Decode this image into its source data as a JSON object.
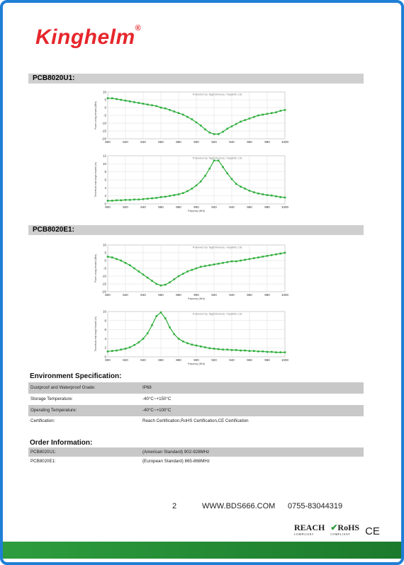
{
  "brand": {
    "name": "Kinghelm",
    "mark": "®"
  },
  "sections": [
    {
      "title": "PCB8020U1:"
    },
    {
      "title": "PCB8020E1:"
    }
  ],
  "chart_data": [
    {
      "type": "line",
      "watermark": "Powered by Tagformance, Voyantic Ltd.",
      "ylabel": "Power on tag forward (dBm)",
      "xlabel": "",
      "xlim": [
        800,
        1000
      ],
      "ylim": [
        -20,
        10
      ],
      "xticks": [
        800,
        820,
        840,
        860,
        880,
        900,
        920,
        940,
        960,
        980,
        1000
      ],
      "yticks": [
        10,
        5,
        0,
        -5,
        -10,
        -15,
        -20
      ],
      "x": [
        800,
        805,
        810,
        815,
        820,
        825,
        830,
        835,
        840,
        845,
        850,
        855,
        860,
        865,
        870,
        875,
        880,
        885,
        890,
        895,
        900,
        905,
        910,
        915,
        920,
        925,
        930,
        935,
        940,
        945,
        950,
        955,
        960,
        965,
        970,
        975,
        980,
        985,
        990,
        995,
        1000
      ],
      "y": [
        6,
        6,
        5.5,
        5,
        4.5,
        4,
        3.5,
        3,
        2.5,
        2,
        1.5,
        1,
        0,
        -0.5,
        -1.5,
        -2.5,
        -3.5,
        -4.5,
        -6,
        -7.5,
        -9.5,
        -11.5,
        -14,
        -16,
        -17,
        -17,
        -15.5,
        -13.5,
        -12,
        -10.5,
        -9,
        -8,
        -7,
        -6,
        -5,
        -4.5,
        -4,
        -3.5,
        -3,
        -2,
        -1.5
      ]
    },
    {
      "type": "line",
      "watermark": "Powered by Tagformance, Voyantic Ltd.",
      "ylabel": "Theoretical read range forward (m)",
      "xlabel": "Frequency (MHz)",
      "xlim": [
        800,
        1000
      ],
      "ylim": [
        0,
        12
      ],
      "xticks": [
        800,
        820,
        840,
        860,
        880,
        900,
        920,
        940,
        960,
        980,
        1000
      ],
      "yticks": [
        12,
        10,
        8,
        6,
        4,
        2,
        0
      ],
      "x": [
        800,
        805,
        810,
        815,
        820,
        825,
        830,
        835,
        840,
        845,
        850,
        855,
        860,
        865,
        870,
        875,
        880,
        885,
        890,
        895,
        900,
        905,
        910,
        915,
        920,
        925,
        930,
        935,
        940,
        945,
        950,
        955,
        960,
        965,
        970,
        975,
        980,
        985,
        990,
        995,
        1000
      ],
      "y": [
        0.8,
        0.8,
        0.9,
        0.9,
        1.0,
        1.0,
        1.1,
        1.1,
        1.2,
        1.3,
        1.4,
        1.5,
        1.7,
        1.8,
        2.0,
        2.2,
        2.4,
        2.7,
        3.2,
        3.8,
        4.6,
        5.6,
        7.0,
        8.8,
        10.8,
        10.8,
        9.2,
        7.6,
        6.2,
        5.0,
        4.3,
        3.8,
        3.3,
        2.9,
        2.6,
        2.4,
        2.2,
        2.1,
        1.9,
        1.7,
        1.6
      ]
    },
    {
      "type": "line",
      "watermark": "Powered by Tagformance, Voyantic Ltd.",
      "ylabel": "Power on tag forward (dBm)",
      "xlabel": "Frequency (MHz)",
      "xlim": [
        800,
        1000
      ],
      "ylim": [
        -20,
        10
      ],
      "xticks": [
        800,
        820,
        840,
        860,
        880,
        900,
        920,
        940,
        960,
        980,
        1000
      ],
      "yticks": [
        10,
        5,
        0,
        -5,
        -10,
        -15,
        -20
      ],
      "x": [
        800,
        805,
        810,
        815,
        820,
        825,
        830,
        835,
        840,
        845,
        850,
        855,
        860,
        865,
        870,
        875,
        880,
        885,
        890,
        895,
        900,
        905,
        910,
        915,
        920,
        925,
        930,
        935,
        940,
        945,
        950,
        955,
        960,
        965,
        970,
        975,
        980,
        985,
        990,
        995,
        1000
      ],
      "y": [
        2.5,
        2,
        1,
        0,
        -1.5,
        -3,
        -5,
        -7,
        -9,
        -11,
        -13,
        -15,
        -16,
        -15.5,
        -14,
        -12,
        -10,
        -8.5,
        -7,
        -6,
        -5,
        -4,
        -3.5,
        -3,
        -2.5,
        -2,
        -1.5,
        -1,
        -0.5,
        -0.5,
        0,
        0.5,
        1,
        1.5,
        2,
        2.5,
        3,
        3.5,
        4,
        4.5,
        5
      ]
    },
    {
      "type": "line",
      "watermark": "Powered by Tagformance, Voyantic Ltd.",
      "ylabel": "Theoretical read range forward (m)",
      "xlabel": "Frequency (MHz)",
      "xlim": [
        800,
        1000
      ],
      "ylim": [
        0,
        10
      ],
      "xticks": [
        800,
        820,
        840,
        860,
        880,
        900,
        920,
        940,
        960,
        980,
        1000
      ],
      "yticks": [
        10,
        8,
        6,
        4,
        2,
        0
      ],
      "x": [
        800,
        805,
        810,
        815,
        820,
        825,
        830,
        835,
        840,
        845,
        850,
        855,
        860,
        865,
        870,
        875,
        880,
        885,
        890,
        895,
        900,
        905,
        910,
        915,
        920,
        925,
        930,
        935,
        940,
        945,
        950,
        955,
        960,
        965,
        970,
        975,
        980,
        985,
        990,
        995,
        1000
      ],
      "y": [
        1.2,
        1.3,
        1.4,
        1.6,
        1.8,
        2.1,
        2.6,
        3.2,
        4.0,
        5.2,
        7.0,
        9.0,
        9.8,
        8.5,
        6.5,
        5.0,
        4.0,
        3.4,
        3.0,
        2.7,
        2.5,
        2.3,
        2.1,
        1.9,
        1.8,
        1.7,
        1.6,
        1.6,
        1.5,
        1.5,
        1.4,
        1.4,
        1.3,
        1.3,
        1.2,
        1.2,
        1.1,
        1.1,
        1.0,
        1.0,
        1.0
      ]
    }
  ],
  "environment": {
    "title": "Environment Specification:",
    "rows": [
      {
        "label": "Dustproof and Waterproof Grade:",
        "value": "IP68"
      },
      {
        "label": "Storage Temperature:",
        "value": "-40°C~+150°C"
      },
      {
        "label": "Operating Temperature:",
        "value": "-40°C~+100°C"
      },
      {
        "label": "Certification:",
        "value": "Reach Certification,RoHS Certification,CE Certification"
      }
    ]
  },
  "order": {
    "title": "Order Information:",
    "rows": [
      {
        "label": "PCB8020U1:",
        "value": "(American Standard) 902-928MHz"
      },
      {
        "label": "PCB8020E1:",
        "value": "(European Standard) 865-868MHz"
      }
    ]
  },
  "footer": {
    "page": "2",
    "website": "WWW.BDS666.COM",
    "phone": "0755-83044319"
  },
  "certs": {
    "reach": "REACH",
    "reach_sub": "COMPLIANT",
    "rohs": "RoHS",
    "rohs_sub": "COMPLIANT",
    "ce": "CE"
  },
  "colors": {
    "frame": "#1f7fd6",
    "brand_red": "#e6262c",
    "line_green": "#2fae3c",
    "band_green": "#2d9d3e",
    "section_gray": "#cfcfcf"
  }
}
